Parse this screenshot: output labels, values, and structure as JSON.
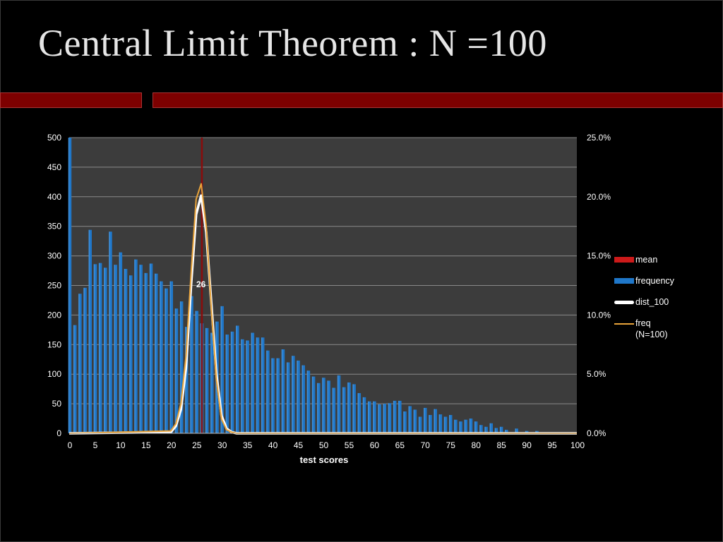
{
  "slide": {
    "title": "Central Limit Theorem : N =100",
    "accent_color": "#7d0000"
  },
  "chart_data": {
    "type": "bar",
    "xlabel": "test scores",
    "ylabel": "",
    "ylim": [
      0,
      500
    ],
    "y2lim": [
      0,
      0.25
    ],
    "xlim": [
      0,
      100
    ],
    "x_ticks": [
      0,
      5,
      10,
      15,
      20,
      25,
      30,
      35,
      40,
      45,
      50,
      55,
      60,
      65,
      70,
      75,
      80,
      85,
      90,
      95,
      100
    ],
    "y_ticks": [
      0,
      50,
      100,
      150,
      200,
      250,
      300,
      350,
      400,
      450,
      500
    ],
    "y2_ticks": [
      "0.0%",
      "5.0%",
      "10.0%",
      "15.0%",
      "20.0%",
      "25.0%"
    ],
    "grid": true,
    "legend_position": "right",
    "mean_label": "26",
    "series": [
      {
        "name": "mean",
        "type": "vertical-line",
        "color": "#cc1a1a",
        "x": 26
      },
      {
        "name": "frequency",
        "type": "bar",
        "color": "#1f77c9",
        "x": [
          0,
          1,
          2,
          3,
          4,
          5,
          6,
          7,
          8,
          9,
          10,
          11,
          12,
          13,
          14,
          15,
          16,
          17,
          18,
          19,
          20,
          21,
          22,
          23,
          24,
          25,
          26,
          27,
          28,
          29,
          30,
          31,
          32,
          33,
          34,
          35,
          36,
          37,
          38,
          39,
          40,
          41,
          42,
          43,
          44,
          45,
          46,
          47,
          48,
          49,
          50,
          51,
          52,
          53,
          54,
          55,
          56,
          57,
          58,
          59,
          60,
          61,
          62,
          63,
          64,
          65,
          66,
          67,
          68,
          69,
          70,
          71,
          72,
          73,
          74,
          75,
          76,
          77,
          78,
          79,
          80,
          81,
          82,
          83,
          84,
          85,
          86,
          87,
          88,
          89,
          90,
          91,
          92,
          93,
          94,
          95,
          96,
          97,
          98,
          99,
          100
        ],
        "values": [
          500,
          183,
          236,
          246,
          344,
          286,
          288,
          280,
          341,
          285,
          306,
          278,
          267,
          294,
          285,
          271,
          287,
          270,
          257,
          245,
          257,
          211,
          223,
          180,
          232,
          207,
          186,
          178,
          170,
          189,
          215,
          167,
          172,
          182,
          159,
          157,
          170,
          162,
          162,
          140,
          127,
          127,
          142,
          120,
          131,
          123,
          115,
          106,
          96,
          85,
          94,
          89,
          77,
          98,
          78,
          86,
          83,
          68,
          61,
          54,
          54,
          49,
          50,
          51,
          55,
          55,
          37,
          46,
          40,
          28,
          43,
          31,
          41,
          32,
          28,
          31,
          23,
          20,
          23,
          25,
          20,
          14,
          11,
          17,
          9,
          11,
          6,
          0,
          8,
          0,
          4,
          0,
          4,
          0,
          0,
          0,
          0,
          0,
          0,
          0,
          0
        ]
      },
      {
        "name": "dist_100",
        "type": "line",
        "axis": "right",
        "color": "#ffffff",
        "x": [
          20,
          21,
          22,
          23,
          24,
          25,
          26,
          27,
          28,
          29,
          30,
          31,
          32,
          33
        ],
        "values": [
          0.001,
          0.006,
          0.02,
          0.055,
          0.125,
          0.185,
          0.201,
          0.17,
          0.11,
          0.05,
          0.015,
          0.004,
          0.001,
          0
        ]
      },
      {
        "name": "freq\n(N=100)",
        "type": "line",
        "axis": "right",
        "color": "#e8a33a",
        "x": [
          20,
          21,
          22,
          23,
          24,
          25,
          26,
          27,
          28,
          29,
          30,
          31,
          32,
          33
        ],
        "values": [
          0.002,
          0.008,
          0.025,
          0.065,
          0.135,
          0.198,
          0.211,
          0.175,
          0.105,
          0.045,
          0.012,
          0.003,
          0.001,
          0
        ]
      }
    ]
  }
}
